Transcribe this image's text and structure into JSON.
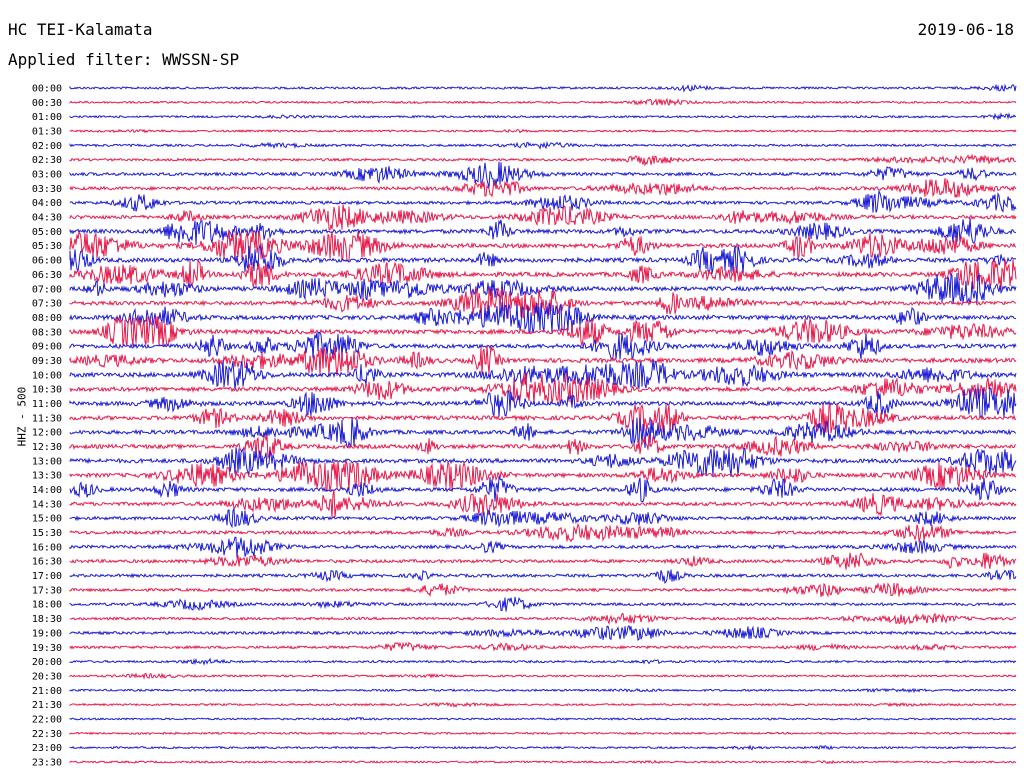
{
  "header": {
    "station": "HC TEI-Kalamata",
    "date": "2019-06-18",
    "filter": "Applied filter: WWSSN-SP"
  },
  "chart_data": {
    "type": "line",
    "title": "HC TEI-Kalamata",
    "subtitle": "Applied filter: WWSSN-SP",
    "ylabel": "HHZ - 500",
    "xlabel": "",
    "colors": [
      "#1a1ad6",
      "#e8194a"
    ],
    "rows": [
      "00:00",
      "00:30",
      "01:00",
      "01:30",
      "02:00",
      "02:30",
      "03:00",
      "03:30",
      "04:00",
      "04:30",
      "05:00",
      "05:30",
      "06:00",
      "06:30",
      "07:00",
      "07:30",
      "08:00",
      "08:30",
      "09:00",
      "09:30",
      "10:00",
      "10:30",
      "11:00",
      "11:30",
      "12:00",
      "12:30",
      "13:00",
      "13:30",
      "14:00",
      "14:30",
      "15:00",
      "15:30",
      "16:00",
      "16:30",
      "17:00",
      "17:30",
      "18:00",
      "18:30",
      "19:00",
      "19:30",
      "20:00",
      "20:30",
      "21:00",
      "21:30",
      "22:00",
      "22:30",
      "23:00",
      "23:30"
    ],
    "activity": [
      0.1,
      0.06,
      0.06,
      0.04,
      0.1,
      0.14,
      0.28,
      0.3,
      0.28,
      0.4,
      0.46,
      0.5,
      0.52,
      0.52,
      0.48,
      0.46,
      0.5,
      0.52,
      0.48,
      0.52,
      0.52,
      0.5,
      0.48,
      0.46,
      0.44,
      0.46,
      0.48,
      0.44,
      0.42,
      0.36,
      0.3,
      0.32,
      0.3,
      0.3,
      0.26,
      0.22,
      0.2,
      0.18,
      0.22,
      0.18,
      0.1,
      0.05,
      0.05,
      0.05,
      0.03,
      0.03,
      0.04,
      0.04
    ]
  }
}
